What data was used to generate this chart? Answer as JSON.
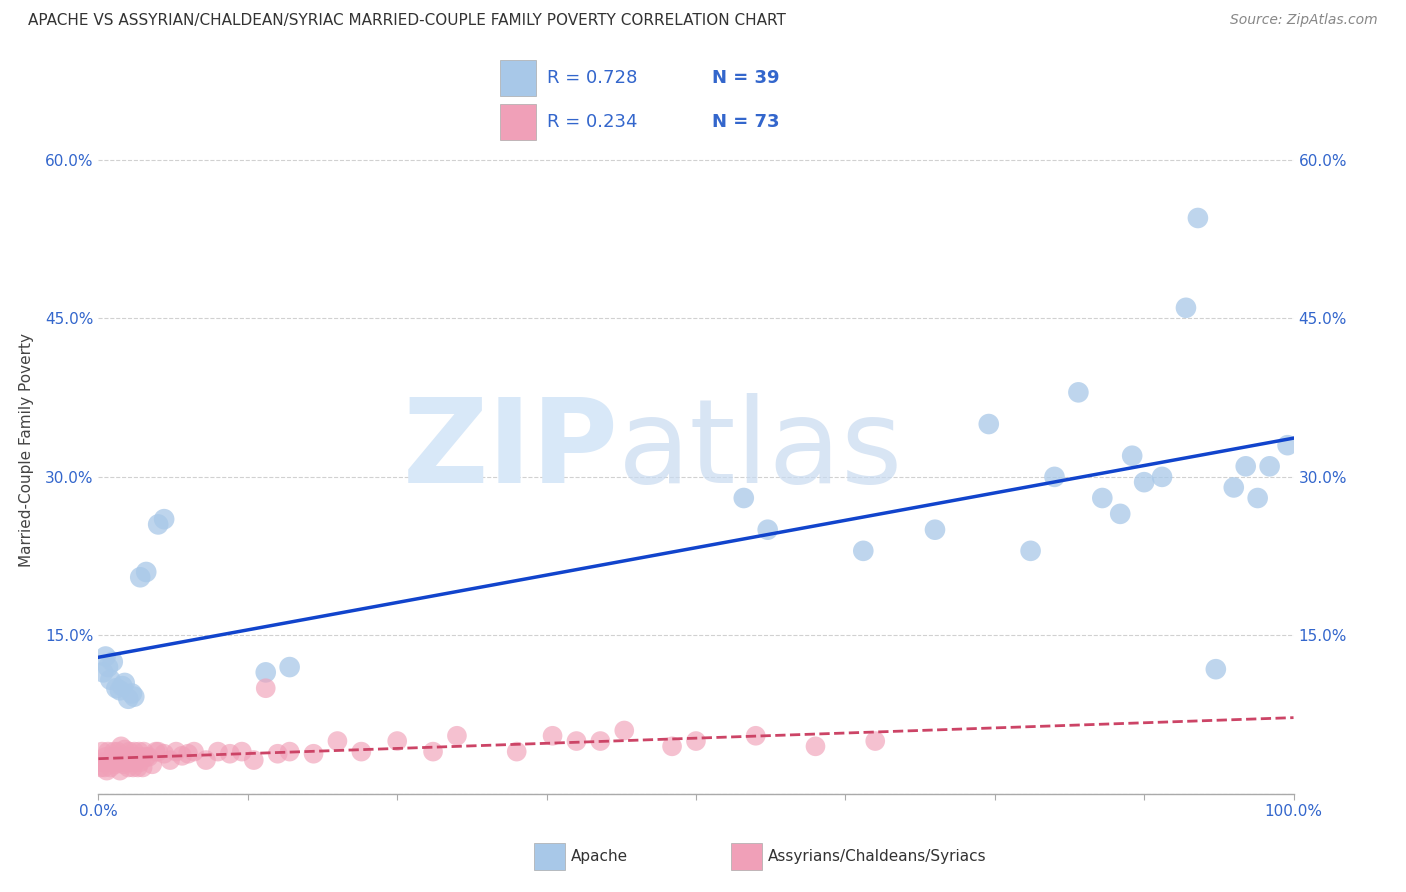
{
  "title": "APACHE VS ASSYRIAN/CHALDEAN/SYRIAC MARRIED-COUPLE FAMILY POVERTY CORRELATION CHART",
  "source": "Source: ZipAtlas.com",
  "ylabel": "Married-Couple Family Poverty",
  "xlim": [
    0.0,
    1.0
  ],
  "ylim": [
    0.0,
    0.65
  ],
  "xticks": [
    0.0,
    0.125,
    0.25,
    0.375,
    0.5,
    0.625,
    0.75,
    0.875,
    1.0
  ],
  "xtick_labels": [
    "0.0%",
    "",
    "",
    "",
    "",
    "",
    "",
    "",
    "100.0%"
  ],
  "yticks": [
    0.0,
    0.15,
    0.3,
    0.45,
    0.6
  ],
  "ytick_labels": [
    "",
    "15.0%",
    "30.0%",
    "45.0%",
    "60.0%"
  ],
  "apache_R": 0.728,
  "apache_N": 39,
  "assyrian_R": 0.234,
  "assyrian_N": 73,
  "apache_color": "#a8c8e8",
  "apache_line_color": "#1144cc",
  "assyrian_color": "#f0a0b8",
  "assyrian_line_color": "#cc4466",
  "background_color": "#ffffff",
  "grid_color": "#cccccc",
  "apache_x": [
    0.004,
    0.006,
    0.008,
    0.01,
    0.012,
    0.015,
    0.018,
    0.02,
    0.022,
    0.025,
    0.028,
    0.03,
    0.035,
    0.04,
    0.05,
    0.055,
    0.14,
    0.16,
    0.54,
    0.56,
    0.64,
    0.7,
    0.745,
    0.78,
    0.8,
    0.82,
    0.84,
    0.855,
    0.865,
    0.875,
    0.89,
    0.91,
    0.92,
    0.935,
    0.95,
    0.96,
    0.97,
    0.98,
    0.995
  ],
  "apache_y": [
    0.115,
    0.13,
    0.12,
    0.108,
    0.125,
    0.1,
    0.098,
    0.102,
    0.105,
    0.09,
    0.095,
    0.092,
    0.205,
    0.21,
    0.255,
    0.26,
    0.115,
    0.12,
    0.28,
    0.25,
    0.23,
    0.25,
    0.35,
    0.23,
    0.3,
    0.38,
    0.28,
    0.265,
    0.32,
    0.295,
    0.3,
    0.46,
    0.545,
    0.118,
    0.29,
    0.31,
    0.28,
    0.31,
    0.33
  ],
  "assyrian_x": [
    0.001,
    0.002,
    0.003,
    0.004,
    0.005,
    0.006,
    0.007,
    0.008,
    0.009,
    0.01,
    0.011,
    0.012,
    0.013,
    0.014,
    0.015,
    0.016,
    0.017,
    0.018,
    0.019,
    0.02,
    0.021,
    0.022,
    0.023,
    0.024,
    0.025,
    0.026,
    0.027,
    0.028,
    0.029,
    0.03,
    0.031,
    0.032,
    0.033,
    0.034,
    0.035,
    0.036,
    0.037,
    0.038,
    0.04,
    0.042,
    0.045,
    0.048,
    0.05,
    0.055,
    0.06,
    0.065,
    0.07,
    0.075,
    0.08,
    0.09,
    0.1,
    0.11,
    0.12,
    0.13,
    0.14,
    0.15,
    0.16,
    0.18,
    0.2,
    0.22,
    0.25,
    0.28,
    0.3,
    0.35,
    0.38,
    0.4,
    0.42,
    0.44,
    0.48,
    0.5,
    0.55,
    0.6,
    0.65
  ],
  "assyrian_y": [
    0.03,
    0.025,
    0.04,
    0.03,
    0.025,
    0.035,
    0.022,
    0.04,
    0.03,
    0.025,
    0.032,
    0.035,
    0.04,
    0.028,
    0.03,
    0.04,
    0.035,
    0.022,
    0.045,
    0.03,
    0.028,
    0.042,
    0.035,
    0.03,
    0.025,
    0.04,
    0.03,
    0.035,
    0.025,
    0.04,
    0.03,
    0.035,
    0.025,
    0.04,
    0.03,
    0.035,
    0.025,
    0.04,
    0.035,
    0.035,
    0.028,
    0.04,
    0.04,
    0.038,
    0.032,
    0.04,
    0.036,
    0.038,
    0.04,
    0.032,
    0.04,
    0.038,
    0.04,
    0.032,
    0.1,
    0.038,
    0.04,
    0.038,
    0.05,
    0.04,
    0.05,
    0.04,
    0.055,
    0.04,
    0.055,
    0.05,
    0.05,
    0.06,
    0.045,
    0.05,
    0.055,
    0.045,
    0.05
  ]
}
